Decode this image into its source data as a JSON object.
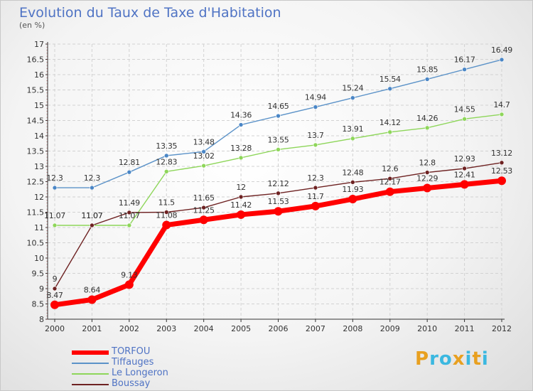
{
  "title": "Evolution du Taux de Taxe d'Habitation",
  "subtitle": "(en %)",
  "colors": {
    "title": "#4f73c4",
    "TORFOU": "#ff0000",
    "Tiffauges": "#5b92c8",
    "Le Longeron": "#8ed65a",
    "Boussay": "#6e2222"
  },
  "chart_data": {
    "type": "line",
    "x": [
      "2000",
      "2001",
      "2002",
      "2003",
      "2004",
      "2005",
      "2006",
      "2007",
      "2008",
      "2009",
      "2010",
      "2011",
      "2012"
    ],
    "ylim": [
      8,
      17
    ],
    "yticks": [
      "8",
      "8.5",
      "9",
      "9.5",
      "10",
      "10.5",
      "11",
      "11.5",
      "12",
      "12.5",
      "13",
      "13.5",
      "14",
      "14.5",
      "15",
      "15.5",
      "16",
      "16.5",
      "17"
    ],
    "grid": true,
    "legend_position": "bottom-left",
    "series": [
      {
        "name": "TORFOU",
        "values": [
          8.47,
          8.64,
          9.13,
          11.08,
          11.25,
          11.42,
          11.53,
          11.7,
          11.93,
          12.17,
          12.29,
          12.41,
          12.53
        ],
        "labels": [
          "8.47",
          "8.64",
          "9.13",
          "11.08",
          "11.25",
          "11.42",
          "11.53",
          "11.7",
          "11.93",
          "12.17",
          "12.29",
          "12.41",
          "12.53"
        ]
      },
      {
        "name": "Tiffauges",
        "values": [
          12.3,
          12.3,
          12.81,
          13.35,
          13.48,
          14.36,
          14.65,
          14.94,
          15.24,
          15.54,
          15.85,
          16.17,
          16.49
        ],
        "labels": [
          "12.3",
          "12.3",
          "12.81",
          "13.35",
          "13.48",
          "14.36",
          "14.65",
          "14.94",
          "15.24",
          "15.54",
          "15.85",
          "16.17",
          "16.49"
        ]
      },
      {
        "name": "Le Longeron",
        "values": [
          11.07,
          11.07,
          11.07,
          12.83,
          13.02,
          13.28,
          13.55,
          13.7,
          13.91,
          14.12,
          14.26,
          14.55,
          14.7
        ],
        "labels": [
          "11.07",
          "11.07",
          "11.07",
          "12.83",
          "13.02",
          "13.28",
          "13.55",
          "13.7",
          "13.91",
          "14.12",
          "14.26",
          "14.55",
          "14.7"
        ]
      },
      {
        "name": "Boussay",
        "values": [
          9,
          11.07,
          11.49,
          11.5,
          11.65,
          12,
          12.12,
          12.3,
          12.48,
          12.6,
          12.8,
          12.93,
          13.12
        ],
        "labels": [
          "9",
          "11.07",
          "11.49",
          "11.5",
          "11.65",
          "12",
          "12.12",
          "12.3",
          "12.48",
          "12.6",
          "12.8",
          "12.93",
          "13.12"
        ]
      }
    ]
  },
  "logo": {
    "letters": [
      "P",
      "r",
      "o",
      "x",
      "i",
      "t",
      "i"
    ],
    "colors": [
      "#e8a020",
      "#3bb8e0",
      "#3bb8e0",
      "#e8a020",
      "#3bb8e0",
      "#e8a020",
      "#3bb8e0"
    ]
  }
}
